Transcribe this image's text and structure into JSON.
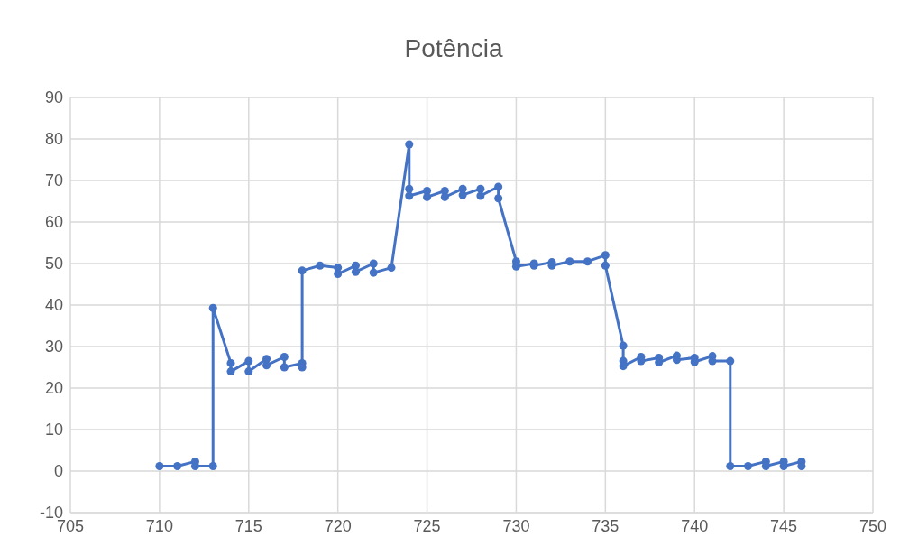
{
  "chart_data": {
    "type": "line",
    "title": "Potência",
    "grid": true,
    "marker": "circle",
    "line_style": "solid",
    "xlim": [
      705,
      750
    ],
    "xticks": [
      705,
      710,
      715,
      720,
      725,
      730,
      735,
      740,
      745,
      750
    ],
    "ylim": [
      -10,
      90
    ],
    "yticks": [
      -10,
      0,
      10,
      20,
      30,
      40,
      50,
      60,
      70,
      80,
      90
    ],
    "series": [
      {
        "color": "#4472c4",
        "x": [
          710,
          711,
          712,
          712,
          713,
          713,
          714,
          714,
          715,
          715,
          716,
          716,
          717,
          717,
          718,
          718,
          718,
          719,
          720,
          720,
          721,
          721,
          722,
          722,
          723,
          724,
          724,
          724,
          725,
          725,
          726,
          726,
          727,
          727,
          728,
          728,
          729,
          729,
          730,
          730,
          731,
          731,
          732,
          732,
          733,
          734,
          735,
          735,
          736,
          736,
          736,
          737,
          737,
          738,
          738,
          739,
          739,
          740,
          740,
          741,
          741,
          742,
          742,
          743,
          744,
          744,
          745,
          745,
          746,
          746
        ],
        "values": [
          1.2,
          1.2,
          2.3,
          1.2,
          1.2,
          39.3,
          26,
          24,
          26.5,
          24,
          27,
          25.5,
          27.5,
          25,
          26,
          25,
          48.3,
          49.5,
          49,
          47.5,
          49.5,
          48,
          50,
          47.8,
          49,
          78.7,
          68,
          66.3,
          67.5,
          66,
          67.5,
          66,
          68,
          66.5,
          68,
          66.3,
          68.5,
          65.7,
          50.5,
          49.3,
          50,
          49.5,
          50.3,
          49.5,
          50.5,
          50.5,
          52,
          49.5,
          30.2,
          26.5,
          25.3,
          27.5,
          26.5,
          27.3,
          26.2,
          27.8,
          26.8,
          27.3,
          26.3,
          27.7,
          26.5,
          26.5,
          1.2,
          1.2,
          2.3,
          1.2,
          2.3,
          1.2,
          2.3,
          1.2
        ]
      }
    ]
  }
}
